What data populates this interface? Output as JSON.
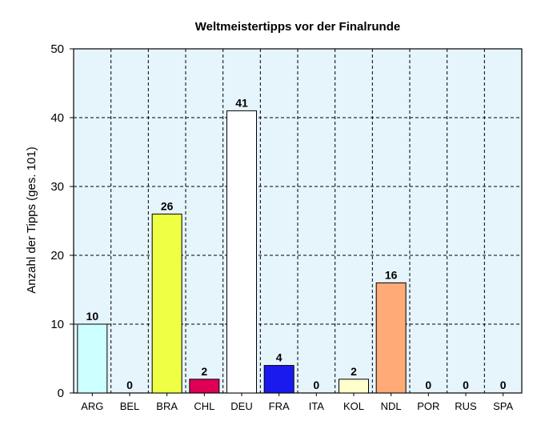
{
  "chart_data": {
    "type": "bar",
    "title": "Weltmeistertipps vor der Finalrunde",
    "xlabel": "",
    "ylabel": "Anzahl der Tipps (ges. 101)",
    "ylim": [
      0,
      50
    ],
    "yticks": [
      0,
      10,
      20,
      30,
      40,
      50
    ],
    "grid": true,
    "legend": "none",
    "plot_background": "#e6f4fc",
    "categories": [
      "ARG",
      "BEL",
      "BRA",
      "CHL",
      "DEU",
      "FRA",
      "ITA",
      "KOL",
      "NDL",
      "POR",
      "RUS",
      "SPA"
    ],
    "values": [
      10,
      0,
      26,
      2,
      41,
      4,
      0,
      2,
      16,
      0,
      0,
      0
    ],
    "data_labels": [
      "10",
      "0",
      "26",
      "2",
      "41",
      "4",
      "0",
      "2",
      "16",
      "0",
      "0",
      "0"
    ],
    "colors": [
      "#ccffff",
      "#ccffff",
      "#eeff44",
      "#dd0055",
      "#ffffff",
      "#1a1aee",
      "#ffffff",
      "#ffffcc",
      "#ffaa77",
      "#ffffff",
      "#ffffff",
      "#ffffff"
    ]
  }
}
